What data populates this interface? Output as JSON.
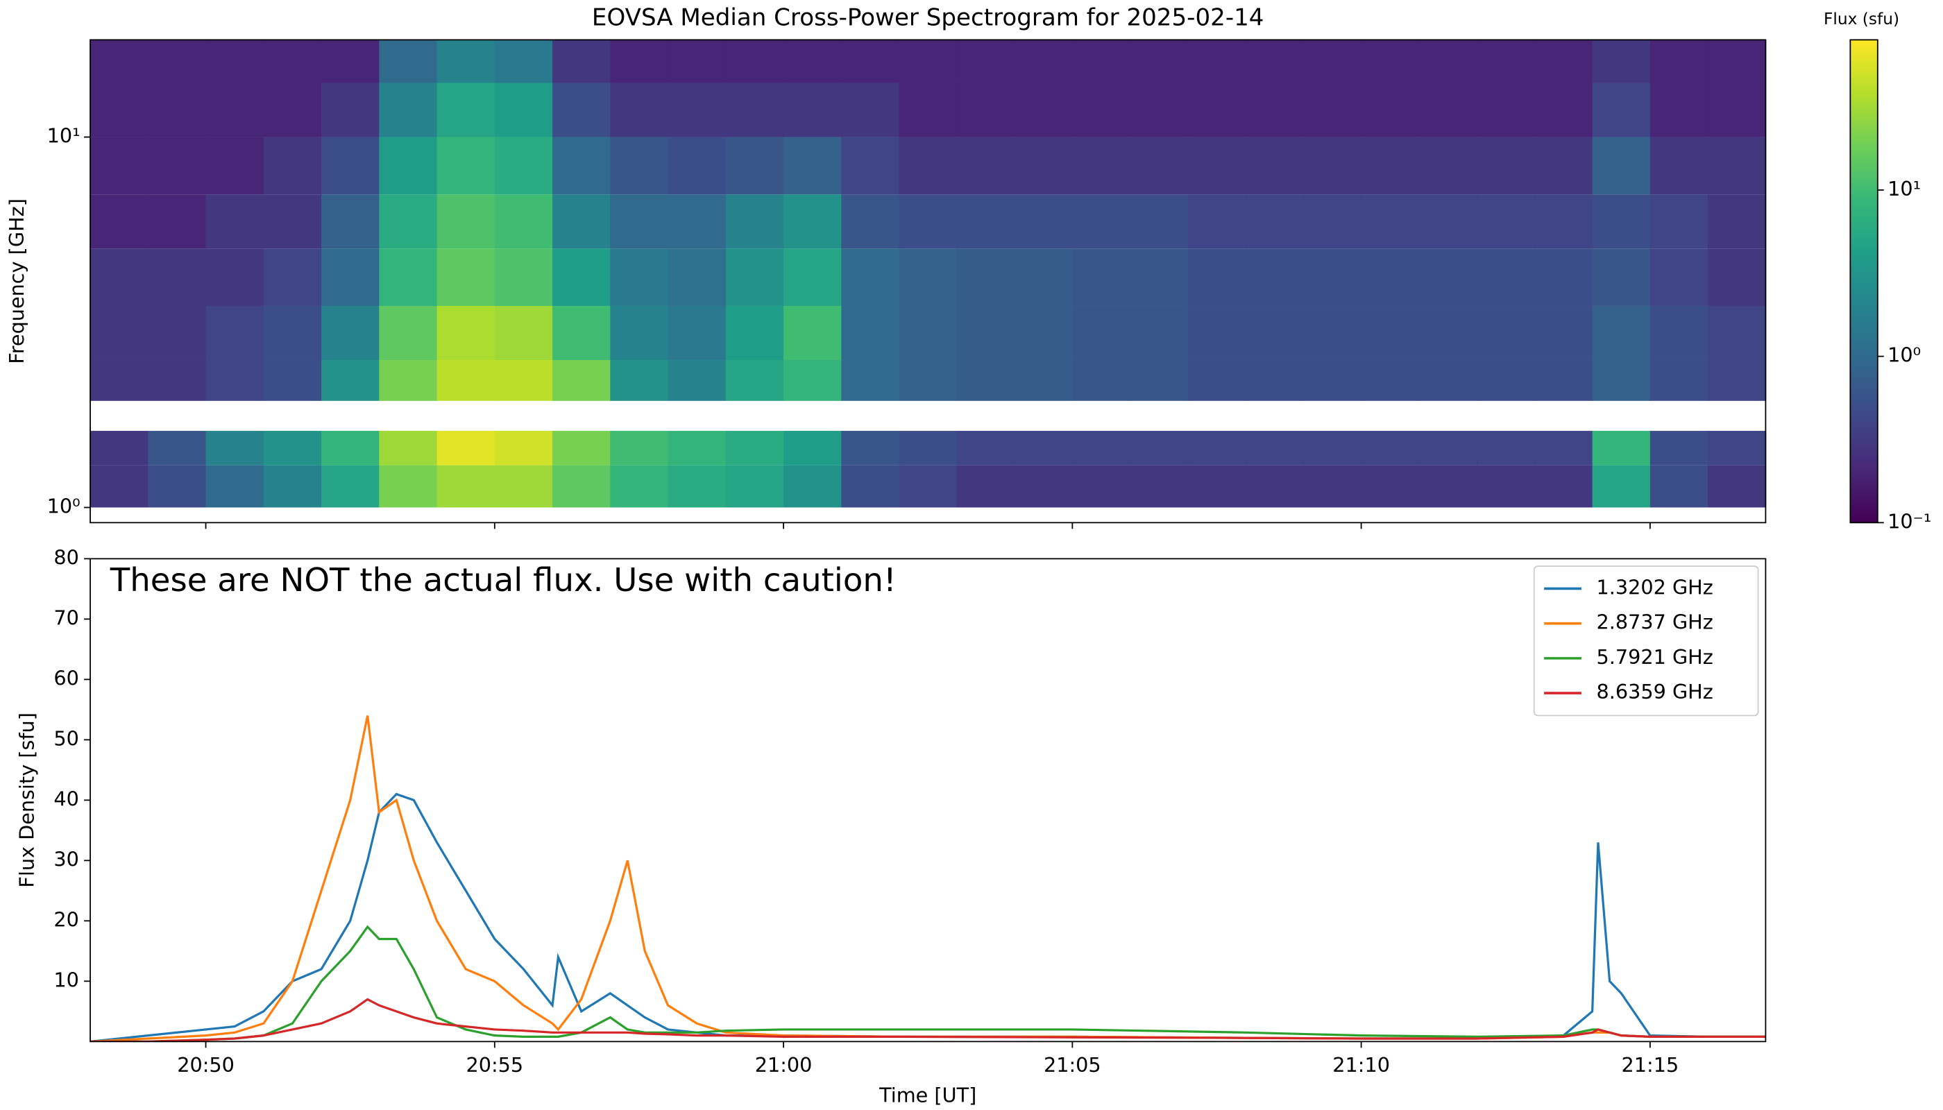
{
  "chart_data": [
    {
      "type": "heatmap",
      "title": "EOVSA Median Cross-Power Spectrogram for 2025-02-14",
      "y_label": "Frequency [GHz]",
      "colorbar_label": "Flux (sfu)",
      "colormap": "viridis",
      "log_y": true,
      "ylim": [
        0.91,
        18.3
      ],
      "yticks": [
        {
          "value": 1,
          "label": "10⁰"
        },
        {
          "value": 10,
          "label": "10¹"
        }
      ],
      "xlim": [
        1248,
        1277
      ],
      "clim": [
        0.1,
        80
      ],
      "cticks": [
        {
          "value": 0.1,
          "label": "10⁻¹"
        },
        {
          "value": 1,
          "label": "10⁰"
        },
        {
          "value": 10,
          "label": "10¹"
        }
      ],
      "x_edges": [
        1248,
        1249,
        1250,
        1251,
        1252,
        1253,
        1254,
        1255,
        1256,
        1257,
        1258,
        1259,
        1260,
        1261,
        1262,
        1263,
        1264,
        1265,
        1266,
        1267,
        1268,
        1269,
        1270,
        1271,
        1272,
        1273,
        1274,
        1275,
        1276,
        1277
      ],
      "y_edges": [
        1.0,
        1.3,
        1.61,
        1.94,
        2.5,
        3.5,
        5,
        7,
        10,
        14,
        18.3
      ],
      "z": [
        [
          0.3,
          0.5,
          1,
          2,
          5,
          20,
          30,
          30,
          15,
          8,
          6,
          5,
          3,
          0.5,
          0.4,
          0.3,
          0.3,
          0.3,
          0.3,
          0.3,
          0.3,
          0.3,
          0.3,
          0.3,
          0.3,
          0.3,
          5,
          0.5,
          0.3
        ],
        [
          0.3,
          0.6,
          2,
          3,
          8,
          30,
          60,
          50,
          20,
          10,
          8,
          6,
          4,
          0.6,
          0.5,
          0.4,
          0.4,
          0.4,
          0.4,
          0.4,
          0.4,
          0.4,
          0.4,
          0.4,
          0.4,
          0.4,
          8,
          0.5,
          0.4
        ],
        [
          null,
          null,
          null,
          null,
          null,
          null,
          null,
          null,
          null,
          null,
          null,
          null,
          null,
          null,
          null,
          null,
          null,
          null,
          null,
          null,
          null,
          null,
          null,
          null,
          null,
          null,
          null,
          null,
          null
        ],
        [
          0.3,
          0.3,
          0.4,
          0.5,
          3,
          20,
          40,
          40,
          20,
          3,
          2,
          5,
          8,
          1,
          0.8,
          0.7,
          0.7,
          0.6,
          0.6,
          0.5,
          0.5,
          0.5,
          0.5,
          0.5,
          0.5,
          0.5,
          0.8,
          0.5,
          0.4
        ],
        [
          0.3,
          0.3,
          0.4,
          0.5,
          2,
          15,
          35,
          30,
          10,
          2,
          1.5,
          4,
          10,
          1,
          0.8,
          0.7,
          0.7,
          0.6,
          0.6,
          0.5,
          0.5,
          0.5,
          0.5,
          0.5,
          0.5,
          0.5,
          0.8,
          0.5,
          0.4
        ],
        [
          0.3,
          0.3,
          0.3,
          0.4,
          1,
          8,
          15,
          12,
          4,
          1.5,
          1.2,
          3,
          5,
          1,
          0.8,
          0.7,
          0.7,
          0.6,
          0.6,
          0.5,
          0.5,
          0.5,
          0.5,
          0.5,
          0.5,
          0.5,
          0.6,
          0.4,
          0.3
        ],
        [
          0.2,
          0.2,
          0.3,
          0.3,
          0.8,
          6,
          12,
          10,
          2,
          1,
          1,
          2,
          3,
          0.6,
          0.5,
          0.5,
          0.5,
          0.5,
          0.5,
          0.4,
          0.4,
          0.4,
          0.4,
          0.4,
          0.4,
          0.4,
          0.5,
          0.4,
          0.3
        ],
        [
          0.2,
          0.2,
          0.2,
          0.3,
          0.5,
          4,
          8,
          6,
          1,
          0.6,
          0.5,
          0.6,
          0.8,
          0.4,
          0.3,
          0.3,
          0.3,
          0.3,
          0.3,
          0.3,
          0.3,
          0.3,
          0.3,
          0.3,
          0.3,
          0.3,
          0.8,
          0.3,
          0.3
        ],
        [
          0.2,
          0.2,
          0.2,
          0.2,
          0.3,
          2,
          5,
          4,
          0.5,
          0.3,
          0.3,
          0.3,
          0.3,
          0.3,
          0.2,
          0.2,
          0.2,
          0.2,
          0.2,
          0.2,
          0.2,
          0.2,
          0.2,
          0.2,
          0.2,
          0.2,
          0.4,
          0.2,
          0.2
        ],
        [
          0.2,
          0.2,
          0.2,
          0.2,
          0.2,
          1,
          2,
          1.5,
          0.3,
          0.2,
          0.2,
          0.2,
          0.2,
          0.2,
          0.2,
          0.2,
          0.2,
          0.2,
          0.2,
          0.2,
          0.2,
          0.2,
          0.2,
          0.2,
          0.2,
          0.2,
          0.3,
          0.2,
          0.2
        ]
      ]
    },
    {
      "type": "line",
      "x_label": "Time [UT]",
      "y_label": "Flux Density [sfu]",
      "annotation": "These are NOT the actual flux. Use with caution!",
      "legend": "upper right",
      "xlim": [
        1248,
        1277
      ],
      "xticks": [
        {
          "value": 1250,
          "label": "20:50"
        },
        {
          "value": 1255,
          "label": "20:55"
        },
        {
          "value": 1260,
          "label": "21:00"
        },
        {
          "value": 1265,
          "label": "21:05"
        },
        {
          "value": 1270,
          "label": "21:10"
        },
        {
          "value": 1275,
          "label": "21:15"
        }
      ],
      "ylim": [
        0,
        80
      ],
      "yticks": [
        10,
        20,
        30,
        40,
        50,
        60,
        70,
        80
      ],
      "x": [
        1248,
        1249,
        1250,
        1250.5,
        1251,
        1251.5,
        1252,
        1252.5,
        1252.8,
        1253,
        1253.3,
        1253.6,
        1254,
        1254.5,
        1255,
        1255.5,
        1256,
        1256.1,
        1256.5,
        1257,
        1257.3,
        1257.6,
        1258,
        1258.5,
        1259,
        1260,
        1262,
        1265,
        1268,
        1270,
        1272,
        1273.5,
        1274,
        1274.1,
        1274.3,
        1274.5,
        1275,
        1276,
        1277
      ],
      "series": [
        {
          "name": "1.3202 GHz",
          "color": "#1f77b4",
          "values": [
            0,
            1,
            2,
            2.5,
            5,
            10,
            12,
            20,
            30,
            38,
            41,
            40,
            33,
            25,
            17,
            12,
            6,
            14,
            5,
            8,
            6,
            4,
            2,
            1.5,
            1,
            1,
            0.8,
            0.8,
            0.6,
            0.5,
            0.5,
            1,
            5,
            33,
            10,
            8,
            1,
            0.8,
            0.8
          ]
        },
        {
          "name": "2.8737 GHz",
          "color": "#ff7f0e",
          "values": [
            0,
            0.5,
            1,
            1.5,
            3,
            10,
            25,
            40,
            54,
            38,
            40,
            30,
            20,
            12,
            10,
            6,
            3,
            2,
            7,
            20,
            30,
            15,
            6,
            3,
            1.5,
            1,
            0.8,
            0.8,
            0.6,
            0.5,
            0.5,
            0.8,
            1.5,
            1.5,
            1.5,
            1,
            0.8,
            0.8,
            0.8
          ]
        },
        {
          "name": "5.7921 GHz",
          "color": "#2ca02c",
          "values": [
            0,
            0,
            0.3,
            0.5,
            1,
            3,
            10,
            15,
            19,
            17,
            17,
            12,
            4,
            2,
            1,
            0.8,
            0.8,
            0.8,
            1.5,
            4,
            2,
            1.5,
            1.5,
            1.5,
            1.8,
            2,
            2,
            2,
            1.5,
            1,
            0.8,
            1,
            2,
            2,
            1.5,
            1,
            0.8,
            0.8,
            0.8
          ]
        },
        {
          "name": "8.6359 GHz",
          "color": "#d62728",
          "values": [
            0,
            0,
            0.3,
            0.5,
            1,
            2,
            3,
            5,
            7,
            6,
            5,
            4,
            3,
            2.5,
            2,
            1.8,
            1.5,
            1.5,
            1.5,
            1.5,
            1.5,
            1.3,
            1.2,
            1,
            1,
            0.8,
            0.8,
            0.7,
            0.6,
            0.5,
            0.5,
            0.8,
            1.5,
            2,
            1.5,
            1,
            0.8,
            0.8,
            0.8
          ]
        }
      ]
    }
  ]
}
